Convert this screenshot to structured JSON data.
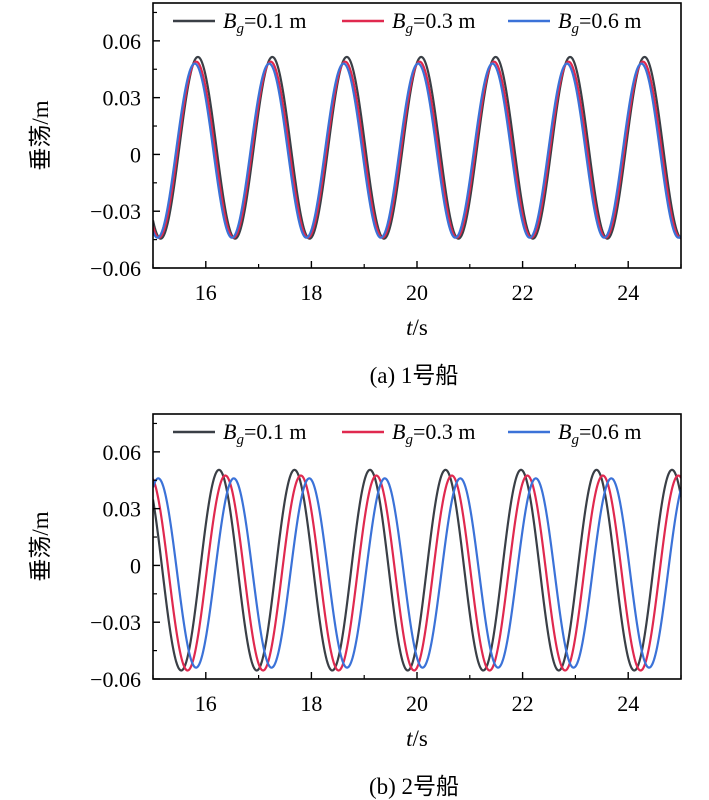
{
  "chart_data": [
    {
      "type": "line",
      "caption": "(a) 1号船",
      "xlabel_var": "t",
      "xlabel_unit": "/s",
      "ylabel": "垂荡/m",
      "xlim": [
        15,
        25
      ],
      "ylim": [
        -0.06,
        0.08
      ],
      "xticks": [
        16,
        18,
        20,
        22,
        24
      ],
      "yticks": [
        0.06,
        0.03,
        0,
        -0.03,
        -0.06
      ],
      "ytick_labels": [
        "0.06",
        "0.03",
        "0",
        "−0.03",
        "−0.06"
      ],
      "legend_position": "top",
      "series": [
        {
          "name_var": "B",
          "name_sub": "g",
          "name_rest": "=0.1 m",
          "color": "#3a3f46",
          "period": 1.41,
          "peak_x": 15.85,
          "amplitude": 0.048,
          "offset": 0.0035
        },
        {
          "name_var": "B",
          "name_sub": "g",
          "name_rest": "=0.3 m",
          "color": "#e0294f",
          "period": 1.41,
          "peak_x": 15.82,
          "amplitude": 0.0465,
          "offset": 0.0025
        },
        {
          "name_var": "B",
          "name_sub": "g",
          "name_rest": "=0.6 m",
          "color": "#3b72d8",
          "period": 1.41,
          "peak_x": 15.79,
          "amplitude": 0.046,
          "offset": 0.002
        }
      ]
    },
    {
      "type": "line",
      "caption": "(b) 2号船",
      "xlabel_var": "t",
      "xlabel_unit": "/s",
      "ylabel": "垂荡/m",
      "xlim": [
        15,
        25
      ],
      "ylim": [
        -0.06,
        0.08
      ],
      "xticks": [
        16,
        18,
        20,
        22,
        24
      ],
      "yticks": [
        0.06,
        0.03,
        0,
        -0.03,
        -0.06
      ],
      "ytick_labels": [
        "0.06",
        "0.03",
        "0",
        "−0.03",
        "−0.06"
      ],
      "legend_position": "top",
      "series": [
        {
          "name_var": "B",
          "name_sub": "g",
          "name_rest": "=0.1 m",
          "color": "#3a3f46",
          "period": 1.43,
          "peak_x": 16.25,
          "amplitude": 0.053,
          "offset": -0.0025
        },
        {
          "name_var": "B",
          "name_sub": "g",
          "name_rest": "=0.3 m",
          "color": "#e0294f",
          "period": 1.43,
          "peak_x": 16.37,
          "amplitude": 0.0515,
          "offset": -0.004
        },
        {
          "name_var": "B",
          "name_sub": "g",
          "name_rest": "=0.6 m",
          "color": "#3b72d8",
          "period": 1.43,
          "peak_x": 16.53,
          "amplitude": 0.05,
          "offset": -0.004
        }
      ]
    }
  ]
}
